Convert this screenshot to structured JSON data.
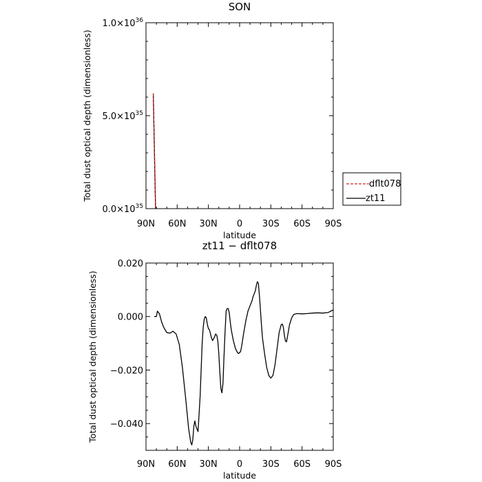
{
  "chart_data": [
    {
      "type": "line",
      "title": "SON",
      "xlabel": "latitude",
      "ylabel": "Total dust optical depth (dimensionless)",
      "xlim": [
        90,
        -90
      ],
      "ylim": [
        0.0,
        1e+36
      ],
      "x_tick_labels": [
        "90N",
        "60N",
        "30N",
        "0",
        "30S",
        "60S",
        "90S"
      ],
      "y_tick_labels": [
        {
          "mantissa": "0.0",
          "exp": "35"
        },
        {
          "mantissa": "5.0",
          "exp": "35"
        },
        {
          "mantissa": "1.0",
          "exp": "36"
        }
      ],
      "legend_position": "right",
      "series": [
        {
          "name": "dflt078",
          "color": "#d62020",
          "style": "dashed",
          "x": [
            83,
            80.8
          ],
          "y": [
            6.2e+35,
            0.0
          ]
        },
        {
          "name": "zt11",
          "color": "#000000",
          "style": "solid",
          "x": [
            83,
            80.8
          ],
          "y": [
            6.2e+35,
            0.0
          ]
        }
      ]
    },
    {
      "type": "line",
      "title": "zt11 − dflt078",
      "xlabel": "latitude",
      "ylabel": "Total dust optical depth (dimensionless)",
      "xlim": [
        90,
        -90
      ],
      "ylim": [
        -0.05,
        0.02
      ],
      "x_tick_labels": [
        "90N",
        "60N",
        "30N",
        "0",
        "30S",
        "60S",
        "90S"
      ],
      "y_tick_labels": [
        "0.020",
        "0.000",
        "−0.020",
        "−0.040"
      ],
      "series": [
        {
          "name": "zt11 − dflt078",
          "color": "#000000",
          "x": [
            82,
            80,
            79,
            77,
            75,
            73,
            70,
            67,
            64,
            61,
            58,
            55,
            52,
            49,
            47,
            46,
            45,
            44,
            43,
            42,
            40,
            38,
            36,
            35,
            34,
            33,
            32,
            31,
            30,
            29,
            27,
            26,
            24,
            23,
            22,
            21,
            20,
            19,
            18,
            17,
            16,
            15,
            14,
            13,
            12,
            11,
            10,
            9,
            8,
            6,
            4,
            2,
            1,
            0,
            -1,
            -2,
            -4,
            -6,
            -8,
            -10,
            -12,
            -13,
            -14,
            -15,
            -16,
            -17,
            -18,
            -19,
            -20,
            -21,
            -22,
            -24,
            -26,
            -28,
            -30,
            -32,
            -34,
            -36,
            -38,
            -40,
            -41,
            -42,
            -43,
            -44,
            -45,
            -46,
            -48,
            -50,
            -52,
            -55,
            -60,
            -65,
            -70,
            -75,
            -80,
            -85,
            -90
          ],
          "y": [
            0.0,
            0.0,
            0.002,
            0.001,
            -0.002,
            -0.004,
            -0.006,
            -0.0062,
            -0.0055,
            -0.0065,
            -0.0105,
            -0.019,
            -0.03,
            -0.042,
            -0.047,
            -0.048,
            -0.046,
            -0.041,
            -0.039,
            -0.041,
            -0.043,
            -0.03,
            -0.01,
            -0.004,
            -0.001,
            0.0,
            -0.0005,
            -0.003,
            -0.0045,
            -0.005,
            -0.008,
            -0.009,
            -0.0075,
            -0.0065,
            -0.007,
            -0.009,
            -0.014,
            -0.021,
            -0.027,
            -0.0285,
            -0.025,
            -0.015,
            -0.006,
            0.002,
            0.003,
            0.003,
            0.0015,
            -0.002,
            -0.005,
            -0.009,
            -0.012,
            -0.0135,
            -0.0138,
            -0.0135,
            -0.013,
            -0.011,
            -0.006,
            -0.0015,
            0.002,
            0.004,
            0.006,
            0.0075,
            0.0085,
            0.0095,
            0.0115,
            0.013,
            0.0125,
            0.008,
            0.0025,
            -0.003,
            -0.008,
            -0.014,
            -0.019,
            -0.022,
            -0.023,
            -0.022,
            -0.018,
            -0.012,
            -0.006,
            -0.003,
            -0.0028,
            -0.004,
            -0.007,
            -0.009,
            -0.0095,
            -0.0075,
            -0.003,
            -0.0005,
            0.0008,
            0.0011,
            0.001,
            0.0011,
            0.0013,
            0.0014,
            0.0013,
            0.0015,
            0.0025
          ]
        }
      ]
    }
  ]
}
